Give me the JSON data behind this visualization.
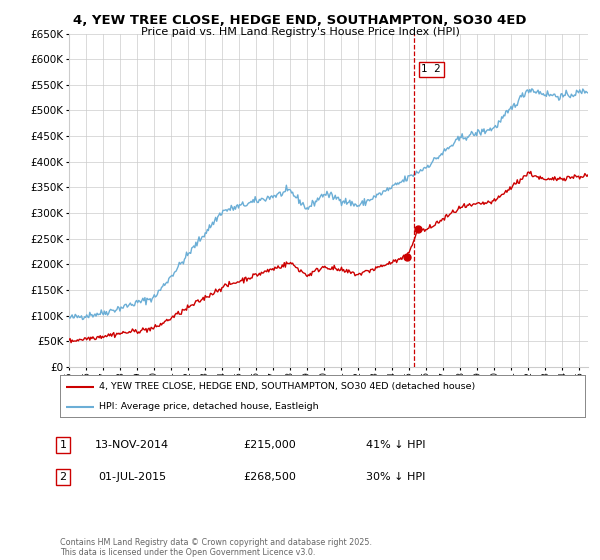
{
  "title": "4, YEW TREE CLOSE, HEDGE END, SOUTHAMPTON, SO30 4ED",
  "subtitle": "Price paid vs. HM Land Registry's House Price Index (HPI)",
  "hpi_label": "HPI: Average price, detached house, Eastleigh",
  "property_label": "4, YEW TREE CLOSE, HEDGE END, SOUTHAMPTON, SO30 4ED (detached house)",
  "hpi_color": "#6baed6",
  "property_color": "#cc0000",
  "vline_color": "#cc0000",
  "background_color": "#ffffff",
  "grid_color": "#cccccc",
  "ylim": [
    0,
    650000
  ],
  "yticks": [
    0,
    50000,
    100000,
    150000,
    200000,
    250000,
    300000,
    350000,
    400000,
    450000,
    500000,
    550000,
    600000,
    650000
  ],
  "sale1_date": 2014.87,
  "sale1_price": 215000,
  "sale1_label": "13-NOV-2014",
  "sale1_pct": "41% ↓ HPI",
  "sale2_date": 2015.5,
  "sale2_price": 268500,
  "sale2_label": "01-JUL-2015",
  "sale2_pct": "30% ↓ HPI",
  "vline_x": 2015.25,
  "footer": "Contains HM Land Registry data © Crown copyright and database right 2025.\nThis data is licensed under the Open Government Licence v3.0.",
  "xmin": 1995,
  "xmax": 2025.5
}
